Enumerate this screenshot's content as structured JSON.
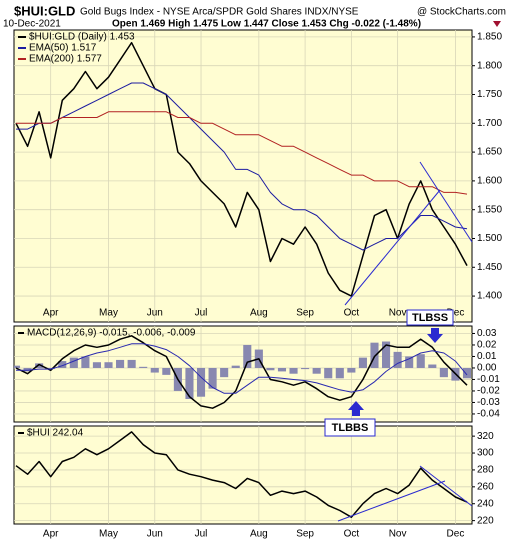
{
  "header": {
    "symbol": "$HUI:GLD",
    "description": "Gold Bugs Index - NYSE Arca/SPDR Gold Shares INDX/NYSE",
    "source": "@ StockCharts.com",
    "date": "10-Dec-2021",
    "quote": "Open 1.469   High 1.475   Low 1.447   Close 1.453   Chg -0.022 (-1.48%)"
  },
  "chart_data": [
    {
      "type": "line",
      "grid": true,
      "legend": "top-left",
      "annotations": [
        "TLBSS"
      ],
      "categories": [
        null,
        null,
        null,
        "Apr",
        null,
        null,
        null,
        null,
        "May",
        null,
        null,
        null,
        "Jun",
        null,
        null,
        null,
        "Jul",
        null,
        null,
        null,
        null,
        "Aug",
        null,
        null,
        null,
        "Sep",
        null,
        null,
        null,
        "Oct",
        null,
        null,
        null,
        "Nov",
        null,
        null,
        null,
        null,
        "Dec",
        null
      ],
      "ylim": [
        1.355,
        1.862
      ],
      "yticks": [
        {
          "value": 1.4,
          "label": "1.400"
        },
        {
          "value": 1.45,
          "label": "1.450"
        },
        {
          "value": 1.5,
          "label": "1.500"
        },
        {
          "value": 1.55,
          "label": "1.550"
        },
        {
          "value": 1.6,
          "label": "1.600"
        },
        {
          "value": 1.65,
          "label": "1.650"
        },
        {
          "value": 1.7,
          "label": "1.700"
        },
        {
          "value": 1.75,
          "label": "1.750"
        },
        {
          "value": 1.8,
          "label": "1.800"
        },
        {
          "value": 1.85,
          "label": "1.850"
        }
      ],
      "series": [
        {
          "name": "$HUI:GLD (Daily) 1.453",
          "color": "#000000",
          "values": [
            1.7,
            1.66,
            1.72,
            1.64,
            1.74,
            1.76,
            1.79,
            1.76,
            1.78,
            1.81,
            1.84,
            1.8,
            1.76,
            1.75,
            1.65,
            1.63,
            1.6,
            1.58,
            1.56,
            1.52,
            1.58,
            1.55,
            1.46,
            1.5,
            1.49,
            1.52,
            1.49,
            1.44,
            1.41,
            1.4,
            1.47,
            1.54,
            1.55,
            1.5,
            1.56,
            1.6,
            1.55,
            1.52,
            1.49,
            1.453
          ]
        },
        {
          "name": "EMA(50) 1.517",
          "color": "#1c1ca0",
          "values": [
            1.69,
            1.69,
            1.7,
            1.7,
            1.71,
            1.72,
            1.73,
            1.74,
            1.75,
            1.76,
            1.77,
            1.77,
            1.76,
            1.75,
            1.73,
            1.71,
            1.69,
            1.67,
            1.65,
            1.62,
            1.62,
            1.61,
            1.58,
            1.56,
            1.55,
            1.55,
            1.54,
            1.52,
            1.5,
            1.49,
            1.48,
            1.49,
            1.5,
            1.5,
            1.52,
            1.54,
            1.54,
            1.53,
            1.52,
            1.517
          ]
        },
        {
          "name": "EMA(200) 1.577",
          "color": "#b22222",
          "values": [
            1.7,
            1.7,
            1.7,
            1.7,
            1.71,
            1.71,
            1.71,
            1.71,
            1.72,
            1.72,
            1.72,
            1.72,
            1.72,
            1.72,
            1.71,
            1.71,
            1.7,
            1.7,
            1.69,
            1.68,
            1.68,
            1.68,
            1.67,
            1.66,
            1.66,
            1.65,
            1.64,
            1.63,
            1.62,
            1.61,
            1.61,
            1.6,
            1.6,
            1.6,
            1.59,
            1.59,
            1.59,
            1.58,
            1.58,
            1.577
          ]
        }
      ]
    },
    {
      "type": "line",
      "grid": true,
      "title": "MACD(12,26,9) -0.015, -0.006, -0.009",
      "annotations": [
        "TLBBS"
      ],
      "ylim": [
        -0.047,
        0.0365
      ],
      "yticks": [
        -0.04,
        -0.03,
        -0.02,
        -0.01,
        {
          "value": 0,
          "label": "0.00"
        },
        0.01,
        0.02,
        0.03
      ],
      "series": [
        {
          "color": "#8888b0",
          "type": "bar",
          "values": [
            0.002,
            -0.003,
            0.004,
            -0.001,
            0.006,
            0.009,
            0.01,
            0.005,
            0.005,
            0.007,
            0.007,
            0.001,
            -0.004,
            -0.006,
            -0.02,
            -0.027,
            -0.025,
            -0.018,
            -0.008,
            0.002,
            0.02,
            0.016,
            -0.002,
            -0.003,
            -0.005,
            -0.001,
            -0.005,
            -0.009,
            -0.009,
            -0.004,
            0.009,
            0.022,
            0.023,
            0.014,
            0.01,
            0.012,
            0.003,
            -0.008,
            -0.011,
            -0.009
          ]
        },
        {
          "color": "#000000",
          "values": [
            0.0,
            -0.005,
            0.003,
            -0.002,
            0.008,
            0.015,
            0.02,
            0.018,
            0.02,
            0.025,
            0.028,
            0.022,
            0.015,
            0.01,
            -0.01,
            -0.025,
            -0.033,
            -0.035,
            -0.03,
            -0.02,
            0.005,
            0.008,
            -0.01,
            -0.012,
            -0.015,
            -0.012,
            -0.018,
            -0.025,
            -0.028,
            -0.025,
            -0.01,
            0.01,
            0.02,
            0.018,
            0.018,
            0.025,
            0.018,
            0.005,
            -0.005,
            -0.015
          ]
        },
        {
          "color": "#2a2ab0",
          "values": [
            -0.002,
            -0.002,
            -0.001,
            -0.001,
            0.002,
            0.006,
            0.01,
            0.013,
            0.015,
            0.018,
            0.021,
            0.021,
            0.019,
            0.016,
            0.01,
            0.002,
            -0.008,
            -0.017,
            -0.022,
            -0.022,
            -0.015,
            -0.008,
            -0.008,
            -0.009,
            -0.01,
            -0.011,
            -0.013,
            -0.016,
            -0.019,
            -0.021,
            -0.019,
            -0.012,
            -0.003,
            0.004,
            0.008,
            0.013,
            0.015,
            0.013,
            0.006,
            -0.006
          ]
        }
      ]
    },
    {
      "type": "line",
      "grid": true,
      "title": "$HUI 242.04",
      "categories": [
        null,
        null,
        null,
        "Apr",
        null,
        null,
        null,
        null,
        "May",
        null,
        null,
        null,
        "Jun",
        null,
        null,
        null,
        "Jul",
        null,
        null,
        null,
        null,
        "Aug",
        null,
        null,
        null,
        "Sep",
        null,
        null,
        null,
        "Oct",
        null,
        null,
        null,
        "Nov",
        null,
        null,
        null,
        null,
        "Dec",
        null
      ],
      "ylim": [
        216,
        332
      ],
      "yticks": [
        220,
        240,
        260,
        280,
        300,
        320
      ],
      "series": [
        {
          "color": "#000000",
          "values": [
            285,
            275,
            290,
            272,
            290,
            295,
            305,
            298,
            305,
            315,
            325,
            310,
            300,
            298,
            280,
            275,
            272,
            268,
            265,
            258,
            270,
            265,
            250,
            255,
            252,
            255,
            248,
            238,
            232,
            224,
            240,
            252,
            258,
            252,
            262,
            282,
            268,
            258,
            248,
            242.04
          ]
        }
      ]
    }
  ]
}
